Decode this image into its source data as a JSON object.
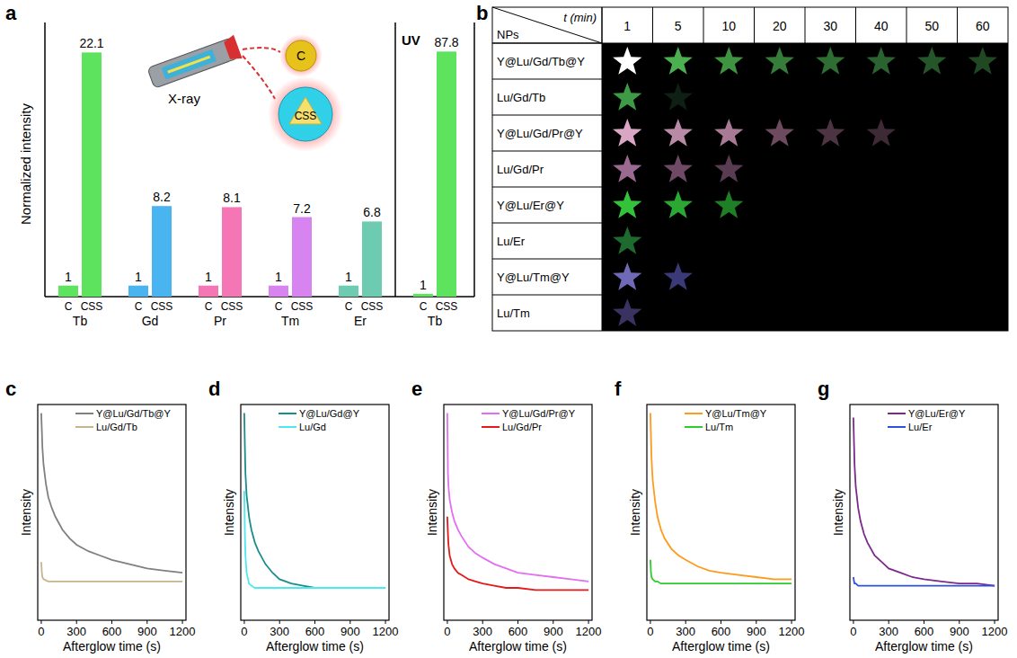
{
  "panel_labels": [
    "a",
    "b",
    "c",
    "d",
    "e",
    "f",
    "g"
  ],
  "inset": {
    "source": "X-ray",
    "core": "C",
    "core_shell": "CSS"
  },
  "chart_data": [
    {
      "type": "bar",
      "y_label": "Normalized intensity",
      "categories": [
        "Tb",
        "Gd",
        "Pr",
        "Tm",
        "Er"
      ],
      "colors": [
        "#5ee35e",
        "#49b4f0",
        "#f576b4",
        "#d884f0",
        "#6ccbb0"
      ],
      "series": [
        {
          "name": "C",
          "values": [
            1,
            1,
            1,
            1,
            1
          ]
        },
        {
          "name": "CSS",
          "values": [
            22.1,
            8.2,
            8.1,
            7.2,
            6.8
          ]
        }
      ],
      "ylim": [
        0,
        24
      ],
      "data_labels": true,
      "tick_labels": "x"
    },
    {
      "type": "bar",
      "title": "UV",
      "categories": [
        "Tb"
      ],
      "colors": [
        "#5ee35e"
      ],
      "series": [
        {
          "name": "C",
          "values": [
            1
          ]
        },
        {
          "name": "CSS",
          "values": [
            87.8
          ]
        }
      ],
      "ylim": [
        0,
        95
      ],
      "data_labels": true,
      "tick_labels": "x"
    },
    {
      "type": "line",
      "x_label": "Afterglow time (s)",
      "y_label": "Intensity",
      "x": [
        0,
        5,
        10,
        20,
        40,
        60,
        90,
        120,
        180,
        240,
        300,
        400,
        500,
        600,
        750,
        900,
        1050,
        1200
      ],
      "series": [
        {
          "name": "Y@Lu/Gd/Tb@Y",
          "color": "#808080",
          "values": [
            96,
            88,
            80,
            72,
            63,
            57,
            52,
            48,
            42,
            38,
            35,
            32,
            30,
            28,
            26,
            24,
            23,
            22
          ]
        },
        {
          "name": "Lu/Gd/Tb",
          "color": "#c8b48a",
          "values": [
            27,
            22,
            20,
            19,
            18.5,
            18,
            18,
            18,
            18,
            18,
            18,
            18,
            18,
            18,
            18,
            18,
            18,
            18
          ]
        }
      ],
      "xlim": [
        -30,
        1230
      ],
      "xticks": [
        0,
        300,
        600,
        900,
        1200
      ],
      "ylim": [
        0,
        100
      ],
      "legend": "upper right",
      "tick_labels": "x"
    },
    {
      "type": "line",
      "x_label": "Afterglow time (s)",
      "y_label": "Intensity",
      "x": [
        0,
        5,
        10,
        20,
        40,
        60,
        90,
        120,
        180,
        240,
        300,
        400,
        500,
        600,
        750,
        900,
        1050,
        1200
      ],
      "series": [
        {
          "name": "Y@Lu/Gd@Y",
          "color": "#1a8c8c",
          "values": [
            96,
            80,
            68,
            58,
            48,
            42,
            36,
            32,
            26,
            22,
            19,
            17,
            16,
            15,
            15,
            15,
            15,
            15
          ]
        },
        {
          "name": "Lu/Gd",
          "color": "#4de8f0",
          "values": [
            60,
            40,
            30,
            22,
            17,
            16,
            15,
            15,
            15,
            15,
            15,
            15,
            15,
            15,
            15,
            15,
            15,
            15
          ]
        }
      ],
      "xlim": [
        -30,
        1230
      ],
      "xticks": [
        0,
        300,
        600,
        900,
        1200
      ],
      "ylim": [
        0,
        100
      ],
      "legend": "upper right",
      "tick_labels": "x"
    },
    {
      "type": "line",
      "x_label": "Afterglow time (s)",
      "y_label": "Intensity",
      "x": [
        0,
        5,
        10,
        20,
        40,
        60,
        90,
        120,
        180,
        240,
        300,
        400,
        500,
        600,
        750,
        900,
        1050,
        1200
      ],
      "series": [
        {
          "name": "Y@Lu/Gd/Pr@Y",
          "color": "#e070f0",
          "values": [
            96,
            68,
            62,
            56,
            50,
            46,
            42,
            39,
            34,
            31,
            29,
            26,
            24,
            22,
            21,
            20,
            19,
            18
          ]
        },
        {
          "name": "Lu/Gd/Pr",
          "color": "#e31a1a",
          "values": [
            48,
            40,
            35,
            30,
            26,
            24,
            22,
            21,
            19,
            18,
            17,
            16,
            15,
            15,
            14,
            14,
            14,
            14
          ]
        }
      ],
      "xlim": [
        -30,
        1230
      ],
      "xticks": [
        0,
        300,
        600,
        900,
        1200
      ],
      "ylim": [
        0,
        100
      ],
      "legend": "upper right",
      "tick_labels": "x"
    },
    {
      "type": "line",
      "x_label": "Afterglow time (s)",
      "y_label": "Intensity",
      "x": [
        0,
        5,
        10,
        20,
        40,
        60,
        90,
        120,
        180,
        240,
        300,
        400,
        500,
        600,
        750,
        900,
        1050,
        1200
      ],
      "series": [
        {
          "name": "Y@Lu/Tm@Y",
          "color": "#ff9a1a",
          "values": [
            96,
            85,
            75,
            65,
            55,
            48,
            42,
            38,
            33,
            30,
            28,
            25,
            23,
            22,
            21,
            20,
            19,
            19
          ]
        },
        {
          "name": "Lu/Tm",
          "color": "#2ecc2e",
          "values": [
            28,
            22,
            20,
            19,
            18,
            18,
            17,
            17,
            17,
            17,
            17,
            17,
            17,
            17,
            17,
            17,
            17,
            17
          ]
        }
      ],
      "xlim": [
        -30,
        1230
      ],
      "xticks": [
        0,
        300,
        600,
        900,
        1200
      ],
      "ylim": [
        0,
        100
      ],
      "legend": "upper right",
      "tick_labels": "x"
    },
    {
      "type": "line",
      "x_label": "Afterglow time (s)",
      "y_label": "Intensity",
      "x": [
        0,
        5,
        10,
        20,
        40,
        60,
        90,
        120,
        180,
        240,
        300,
        400,
        500,
        600,
        750,
        900,
        1050,
        1200
      ],
      "series": [
        {
          "name": "Y@Lu/Er@Y",
          "color": "#7b2a8c",
          "values": [
            94,
            82,
            72,
            62,
            52,
            46,
            40,
            36,
            30,
            27,
            24,
            22,
            20,
            19,
            18,
            17,
            17,
            16
          ]
        },
        {
          "name": "Lu/Er",
          "color": "#3050dd",
          "values": [
            20,
            18,
            17,
            17,
            16,
            16,
            16,
            16,
            16,
            16,
            16,
            16,
            16,
            16,
            16,
            16,
            16,
            16
          ]
        }
      ],
      "xlim": [
        -30,
        1230
      ],
      "xticks": [
        0,
        300,
        600,
        900,
        1200
      ],
      "ylim": [
        0,
        100
      ],
      "legend": "upper right",
      "tick_labels": "x"
    }
  ],
  "star_table": {
    "row_header": "NPs",
    "column_header": "t (min)",
    "columns": [
      1,
      5,
      10,
      20,
      30,
      40,
      50,
      60
    ],
    "rows": [
      {
        "label": "Y@Lu/Gd/Tb@Y",
        "colors": [
          "#ffffff",
          "#4caf50",
          "#3e9440",
          "#357d38",
          "#2f6e32",
          "#2b6330",
          "#25562a",
          "#1f4823"
        ]
      },
      {
        "label": "Lu/Gd/Tb",
        "colors": [
          "#3f9a45",
          "#0f1f14"
        ]
      },
      {
        "label": "Y@Lu/Gd/Pr@Y",
        "colors": [
          "#d9a6c4",
          "#b88aa6",
          "#a87a96",
          "#6e4a5e",
          "#4d3442",
          "#3d2a35"
        ]
      },
      {
        "label": "Lu/Gd/Pr",
        "colors": [
          "#9a6a90",
          "#6e4a66",
          "#5a3c52"
        ]
      },
      {
        "label": "Y@Lu/Er@Y",
        "colors": [
          "#33c23a",
          "#2aa832",
          "#1f7f26"
        ]
      },
      {
        "label": "Lu/Er",
        "colors": [
          "#1f6a2e"
        ]
      },
      {
        "label": "Y@Lu/Tm@Y",
        "colors": [
          "#6e6ab8",
          "#3a3a78"
        ]
      },
      {
        "label": "Lu/Tm",
        "colors": [
          "#3a3260"
        ]
      }
    ]
  }
}
